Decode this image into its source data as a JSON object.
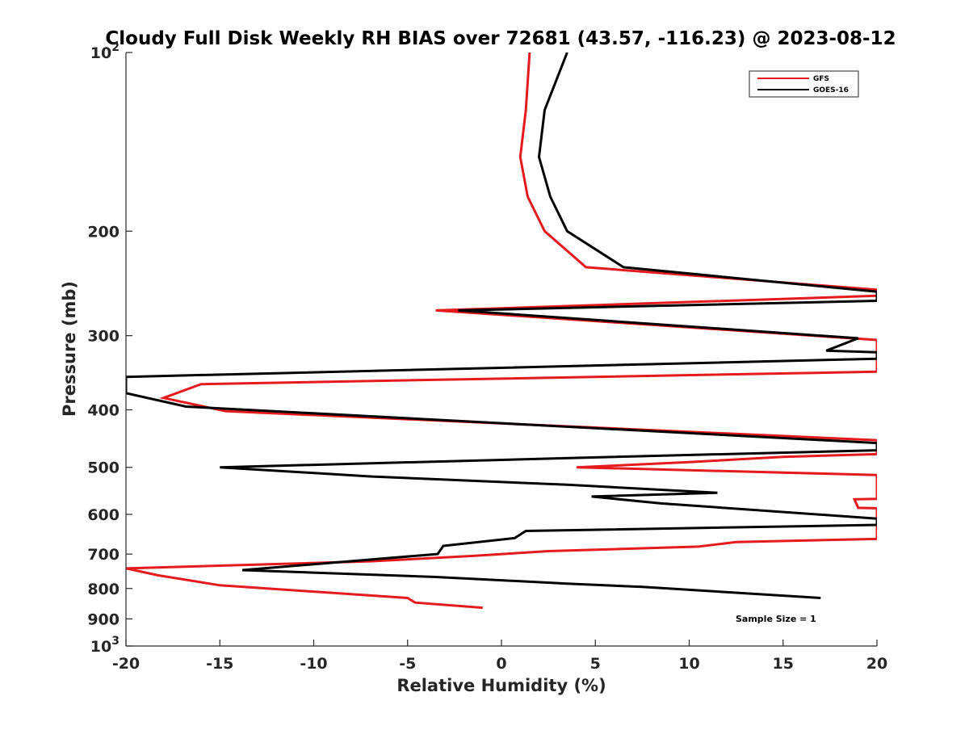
{
  "chart_data": {
    "type": "line",
    "title": "Cloudy Full Disk Weekly RH BIAS over 72681 (43.57, -116.23) @ 2023-08-12",
    "xlabel": "Relative Humidity (%)",
    "ylabel": "Pressure (mb)",
    "xlim": [
      -20,
      20
    ],
    "ylim": [
      100,
      1000
    ],
    "y_scale": "log",
    "y_reversed": true,
    "grid": false,
    "legend_position": "top-right",
    "x_ticks": [
      -20,
      -15,
      -10,
      -5,
      0,
      5,
      10,
      15,
      20
    ],
    "x_tick_labels": [
      "-20",
      "-15",
      "-10",
      "-5",
      "0",
      "5",
      "10",
      "15",
      "20"
    ],
    "y_ticks": [
      100,
      200,
      300,
      400,
      500,
      600,
      700,
      800,
      900,
      1000
    ],
    "y_tick_labels": [
      {
        "base": "10",
        "exp": "2"
      },
      {
        "base": "200",
        "exp": ""
      },
      {
        "base": "300",
        "exp": ""
      },
      {
        "base": "400",
        "exp": ""
      },
      {
        "base": "500",
        "exp": ""
      },
      {
        "base": "600",
        "exp": ""
      },
      {
        "base": "700",
        "exp": ""
      },
      {
        "base": "800",
        "exp": ""
      },
      {
        "base": "900",
        "exp": ""
      },
      {
        "base": "10",
        "exp": "3"
      }
    ],
    "annotation": "Sample Size = 1",
    "series": [
      {
        "name": "GFS",
        "color": "#e41a1c",
        "points": [
          [
            1.5,
            100
          ],
          [
            1.3,
            125
          ],
          [
            1.0,
            150
          ],
          [
            1.4,
            175
          ],
          [
            2.3,
            200
          ],
          [
            4.5,
            230
          ],
          [
            20,
            251
          ],
          [
            20,
            257
          ],
          [
            -3.5,
            272
          ],
          [
            20,
            305
          ],
          [
            20,
            328
          ],
          [
            20,
            345
          ],
          [
            -16,
            362
          ],
          [
            -18,
            382
          ],
          [
            -14.7,
            402
          ],
          [
            20,
            450
          ],
          [
            20,
            470
          ],
          [
            20,
            475
          ],
          [
            15,
            480
          ],
          [
            10,
            490
          ],
          [
            4.0,
            500
          ],
          [
            20,
            515
          ],
          [
            20,
            565
          ],
          [
            18.8,
            566
          ],
          [
            19.0,
            585
          ],
          [
            20,
            586
          ],
          [
            20,
            660
          ],
          [
            12.5,
            668
          ],
          [
            10.5,
            680
          ],
          [
            2.5,
            692
          ],
          [
            -1.5,
            705
          ],
          [
            -7,
            720
          ],
          [
            -20,
            740
          ],
          [
            -18.3,
            760
          ],
          [
            -15,
            790
          ],
          [
            -5,
            830
          ],
          [
            -4.6,
            845
          ],
          [
            -1.0,
            862
          ]
        ]
      },
      {
        "name": "GOES-16",
        "color": "#000000",
        "points": [
          [
            3.5,
            100
          ],
          [
            2.3,
            125
          ],
          [
            2.0,
            150
          ],
          [
            2.6,
            175
          ],
          [
            3.5,
            200
          ],
          [
            6.5,
            230
          ],
          [
            20,
            253
          ],
          [
            20,
            262
          ],
          [
            -2.3,
            272
          ],
          [
            19.0,
            303
          ],
          [
            17.3,
            318
          ],
          [
            20,
            320
          ],
          [
            20,
            328
          ],
          [
            -20,
            352
          ],
          [
            -20,
            375
          ],
          [
            -16.8,
            395
          ],
          [
            20,
            455
          ],
          [
            20,
            468
          ],
          [
            4.0,
            482
          ],
          [
            -15,
            500
          ],
          [
            -7,
            518
          ],
          [
            3.5,
            535
          ],
          [
            11.5,
            552
          ],
          [
            4.8,
            560
          ],
          [
            8.5,
            575
          ],
          [
            20,
            610
          ],
          [
            20,
            625
          ],
          [
            1.3,
            640
          ],
          [
            0.7,
            658
          ],
          [
            -3.1,
            678
          ],
          [
            -3.4,
            700
          ],
          [
            -13.8,
            745
          ],
          [
            -3.5,
            765
          ],
          [
            3.5,
            785
          ],
          [
            7.5,
            795
          ],
          [
            17,
            830
          ]
        ]
      }
    ]
  }
}
